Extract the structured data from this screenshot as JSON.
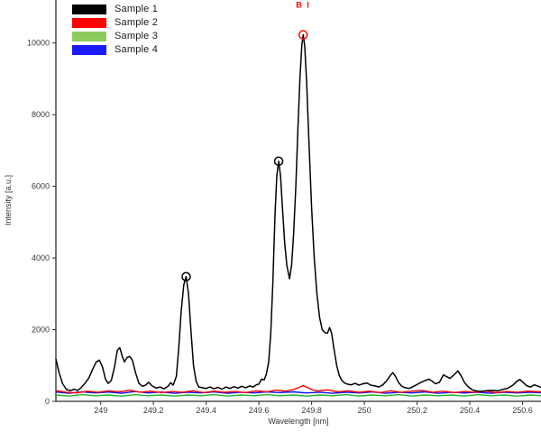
{
  "figure": {
    "background": "#ffffff",
    "axis_color": "#2b2b2b",
    "tick_label_color": "#3a3a3a"
  },
  "legend": {
    "position": "top-left",
    "items": [
      {
        "label": "Sample 1",
        "color": "#000000"
      },
      {
        "label": "Sample 2",
        "color": "#ff0000"
      },
      {
        "label": "Sample 3",
        "color": "#8ccb5e"
      },
      {
        "label": "Sample 4",
        "color": "#1a1aff"
      }
    ]
  },
  "chart_data": {
    "type": "line",
    "title": "",
    "xlabel": "Wavelength [nm]",
    "ylabel": "Intensity [a.u.]",
    "xlim": [
      248.83,
      250.67
    ],
    "ylim": [
      0,
      11200
    ],
    "grid": false,
    "legend_position": "top-left",
    "x_ticks": [
      249,
      249.2,
      249.4,
      249.6,
      249.8,
      250,
      250.2,
      250.4,
      250.6
    ],
    "x_tick_labels": [
      "249",
      "249.2",
      "249.4",
      "249.6",
      "249.8",
      "250",
      "250.2",
      "250.4",
      "250.6"
    ],
    "y_ticks": [
      0,
      2000,
      4000,
      6000,
      8000,
      10000
    ],
    "y_tick_labels": [
      "0",
      "2000",
      "4000",
      "6000",
      "8000",
      "10000"
    ],
    "markers": [
      {
        "x": 249.324,
        "y": 3480,
        "color": "#000000",
        "note": "peak marker"
      },
      {
        "x": 249.675,
        "y": 6700,
        "color": "#000000",
        "note": "peak marker"
      },
      {
        "x": 249.768,
        "y": 10230,
        "color": "#ff0000",
        "note": "B I peak marker"
      }
    ],
    "annotations": [
      {
        "text": "B I",
        "x": 249.768,
        "y": 10980,
        "color": "#ff0000"
      }
    ],
    "series": [
      {
        "name": "Sample 1",
        "color": "#000000",
        "line_width": 1.5,
        "points": [
          [
            248.83,
            1180
          ],
          [
            248.842,
            800
          ],
          [
            248.855,
            500
          ],
          [
            248.87,
            330
          ],
          [
            248.885,
            300
          ],
          [
            248.9,
            340
          ],
          [
            248.912,
            300
          ],
          [
            248.925,
            380
          ],
          [
            248.94,
            500
          ],
          [
            248.955,
            650
          ],
          [
            248.97,
            900
          ],
          [
            248.983,
            1100
          ],
          [
            248.995,
            1150
          ],
          [
            249.007,
            950
          ],
          [
            249.018,
            620
          ],
          [
            249.028,
            500
          ],
          [
            249.04,
            580
          ],
          [
            249.052,
            950
          ],
          [
            249.063,
            1420
          ],
          [
            249.072,
            1500
          ],
          [
            249.082,
            1250
          ],
          [
            249.09,
            1100
          ],
          [
            249.1,
            1220
          ],
          [
            249.11,
            1250
          ],
          [
            249.12,
            1150
          ],
          [
            249.132,
            800
          ],
          [
            249.145,
            500
          ],
          [
            249.158,
            420
          ],
          [
            249.17,
            450
          ],
          [
            249.182,
            530
          ],
          [
            249.195,
            430
          ],
          [
            249.21,
            370
          ],
          [
            249.225,
            400
          ],
          [
            249.24,
            350
          ],
          [
            249.255,
            420
          ],
          [
            249.265,
            520
          ],
          [
            249.275,
            450
          ],
          [
            249.287,
            700
          ],
          [
            249.296,
            1500
          ],
          [
            249.305,
            2500
          ],
          [
            249.315,
            3250
          ],
          [
            249.324,
            3480
          ],
          [
            249.333,
            3000
          ],
          [
            249.342,
            2000
          ],
          [
            249.352,
            1000
          ],
          [
            249.362,
            550
          ],
          [
            249.372,
            400
          ],
          [
            249.385,
            380
          ],
          [
            249.4,
            360
          ],
          [
            249.415,
            400
          ],
          [
            249.43,
            350
          ],
          [
            249.445,
            390
          ],
          [
            249.46,
            340
          ],
          [
            249.475,
            400
          ],
          [
            249.49,
            360
          ],
          [
            249.505,
            410
          ],
          [
            249.52,
            370
          ],
          [
            249.535,
            420
          ],
          [
            249.55,
            380
          ],
          [
            249.565,
            430
          ],
          [
            249.578,
            400
          ],
          [
            249.59,
            460
          ],
          [
            249.6,
            480
          ],
          [
            249.61,
            620
          ],
          [
            249.62,
            600
          ],
          [
            249.628,
            750
          ],
          [
            249.637,
            1100
          ],
          [
            249.645,
            1900
          ],
          [
            249.653,
            3300
          ],
          [
            249.661,
            5200
          ],
          [
            249.668,
            6300
          ],
          [
            249.675,
            6700
          ],
          [
            249.682,
            6300
          ],
          [
            249.69,
            5300
          ],
          [
            249.698,
            4400
          ],
          [
            249.706,
            3800
          ],
          [
            249.716,
            3420
          ],
          [
            249.724,
            3800
          ],
          [
            249.732,
            4700
          ],
          [
            249.74,
            6000
          ],
          [
            249.748,
            7600
          ],
          [
            249.756,
            9100
          ],
          [
            249.763,
            9950
          ],
          [
            249.768,
            10230
          ],
          [
            249.774,
            9900
          ],
          [
            249.781,
            8900
          ],
          [
            249.79,
            7200
          ],
          [
            249.8,
            5400
          ],
          [
            249.81,
            4000
          ],
          [
            249.82,
            3000
          ],
          [
            249.83,
            2350
          ],
          [
            249.84,
            2000
          ],
          [
            249.85,
            1920
          ],
          [
            249.86,
            1900
          ],
          [
            249.868,
            2060
          ],
          [
            249.876,
            1900
          ],
          [
            249.885,
            1450
          ],
          [
            249.895,
            1000
          ],
          [
            249.905,
            720
          ],
          [
            249.915,
            580
          ],
          [
            249.925,
            510
          ],
          [
            249.935,
            480
          ],
          [
            249.95,
            460
          ],
          [
            249.965,
            500
          ],
          [
            249.98,
            450
          ],
          [
            249.995,
            490
          ],
          [
            250.01,
            510
          ],
          [
            250.025,
            450
          ],
          [
            250.04,
            430
          ],
          [
            250.055,
            400
          ],
          [
            250.07,
            460
          ],
          [
            250.085,
            580
          ],
          [
            250.098,
            720
          ],
          [
            250.108,
            800
          ],
          [
            250.118,
            700
          ],
          [
            250.13,
            520
          ],
          [
            250.142,
            420
          ],
          [
            250.155,
            380
          ],
          [
            250.17,
            360
          ],
          [
            250.185,
            410
          ],
          [
            250.2,
            470
          ],
          [
            250.215,
            530
          ],
          [
            250.23,
            580
          ],
          [
            250.245,
            620
          ],
          [
            250.258,
            560
          ],
          [
            250.27,
            490
          ],
          [
            250.285,
            530
          ],
          [
            250.3,
            740
          ],
          [
            250.312,
            690
          ],
          [
            250.325,
            640
          ],
          [
            250.34,
            740
          ],
          [
            250.355,
            850
          ],
          [
            250.368,
            700
          ],
          [
            250.38,
            520
          ],
          [
            250.395,
            400
          ],
          [
            250.41,
            320
          ],
          [
            250.425,
            290
          ],
          [
            250.445,
            280
          ],
          [
            250.465,
            300
          ],
          [
            250.485,
            310
          ],
          [
            250.505,
            295
          ],
          [
            250.525,
            330
          ],
          [
            250.545,
            370
          ],
          [
            250.565,
            460
          ],
          [
            250.578,
            560
          ],
          [
            250.59,
            610
          ],
          [
            250.603,
            520
          ],
          [
            250.617,
            430
          ],
          [
            250.63,
            400
          ],
          [
            250.645,
            460
          ],
          [
            250.66,
            420
          ],
          [
            250.67,
            390
          ]
        ]
      },
      {
        "name": "Sample 2",
        "color": "#ff0000",
        "line_width": 1.4,
        "points": [
          [
            248.83,
            300
          ],
          [
            248.87,
            255
          ],
          [
            248.91,
            235
          ],
          [
            248.95,
            285
          ],
          [
            248.99,
            255
          ],
          [
            249.03,
            295
          ],
          [
            249.07,
            265
          ],
          [
            249.11,
            310
          ],
          [
            249.15,
            255
          ],
          [
            249.19,
            285
          ],
          [
            249.23,
            245
          ],
          [
            249.27,
            275
          ],
          [
            249.31,
            255
          ],
          [
            249.35,
            295
          ],
          [
            249.39,
            245
          ],
          [
            249.43,
            285
          ],
          [
            249.47,
            255
          ],
          [
            249.51,
            275
          ],
          [
            249.55,
            245
          ],
          [
            249.59,
            295
          ],
          [
            249.63,
            265
          ],
          [
            249.665,
            315
          ],
          [
            249.7,
            285
          ],
          [
            249.73,
            330
          ],
          [
            249.75,
            380
          ],
          [
            249.768,
            440
          ],
          [
            249.785,
            385
          ],
          [
            249.8,
            330
          ],
          [
            249.82,
            290
          ],
          [
            249.86,
            320
          ],
          [
            249.9,
            265
          ],
          [
            249.94,
            295
          ],
          [
            249.98,
            255
          ],
          [
            250.02,
            285
          ],
          [
            250.06,
            245
          ],
          [
            250.1,
            295
          ],
          [
            250.14,
            255
          ],
          [
            250.18,
            285
          ],
          [
            250.22,
            305
          ],
          [
            250.26,
            255
          ],
          [
            250.3,
            285
          ],
          [
            250.34,
            245
          ],
          [
            250.38,
            275
          ],
          [
            250.42,
            255
          ],
          [
            250.46,
            285
          ],
          [
            250.5,
            245
          ],
          [
            250.54,
            275
          ],
          [
            250.58,
            255
          ],
          [
            250.62,
            285
          ],
          [
            250.67,
            265
          ]
        ]
      },
      {
        "name": "Sample 3",
        "color": "#1cb72c",
        "line_width": 1.4,
        "points": [
          [
            248.83,
            175
          ],
          [
            248.88,
            145
          ],
          [
            248.93,
            185
          ],
          [
            248.98,
            155
          ],
          [
            249.03,
            175
          ],
          [
            249.08,
            145
          ],
          [
            249.13,
            185
          ],
          [
            249.18,
            155
          ],
          [
            249.23,
            175
          ],
          [
            249.28,
            145
          ],
          [
            249.33,
            175
          ],
          [
            249.38,
            155
          ],
          [
            249.43,
            185
          ],
          [
            249.48,
            145
          ],
          [
            249.53,
            175
          ],
          [
            249.58,
            155
          ],
          [
            249.63,
            185
          ],
          [
            249.68,
            155
          ],
          [
            249.73,
            175
          ],
          [
            249.78,
            145
          ],
          [
            249.83,
            175
          ],
          [
            249.88,
            155
          ],
          [
            249.93,
            185
          ],
          [
            249.98,
            145
          ],
          [
            250.03,
            175
          ],
          [
            250.08,
            155
          ],
          [
            250.13,
            185
          ],
          [
            250.18,
            145
          ],
          [
            250.23,
            175
          ],
          [
            250.28,
            155
          ],
          [
            250.33,
            175
          ],
          [
            250.38,
            145
          ],
          [
            250.43,
            185
          ],
          [
            250.48,
            155
          ],
          [
            250.53,
            175
          ],
          [
            250.58,
            145
          ],
          [
            250.63,
            175
          ],
          [
            250.67,
            155
          ]
        ]
      },
      {
        "name": "Sample 4",
        "color": "#0a0af0",
        "line_width": 1.4,
        "points": [
          [
            248.83,
            260
          ],
          [
            248.88,
            225
          ],
          [
            248.93,
            265
          ],
          [
            248.98,
            235
          ],
          [
            249.03,
            260
          ],
          [
            249.08,
            225
          ],
          [
            249.13,
            275
          ],
          [
            249.18,
            235
          ],
          [
            249.23,
            260
          ],
          [
            249.28,
            225
          ],
          [
            249.33,
            255
          ],
          [
            249.38,
            235
          ],
          [
            249.43,
            265
          ],
          [
            249.48,
            225
          ],
          [
            249.53,
            255
          ],
          [
            249.58,
            235
          ],
          [
            249.63,
            265
          ],
          [
            249.68,
            245
          ],
          [
            249.73,
            265
          ],
          [
            249.78,
            235
          ],
          [
            249.83,
            255
          ],
          [
            249.88,
            225
          ],
          [
            249.93,
            255
          ],
          [
            249.98,
            235
          ],
          [
            250.03,
            265
          ],
          [
            250.08,
            225
          ],
          [
            250.13,
            255
          ],
          [
            250.18,
            235
          ],
          [
            250.23,
            265
          ],
          [
            250.28,
            225
          ],
          [
            250.33,
            255
          ],
          [
            250.38,
            235
          ],
          [
            250.43,
            255
          ],
          [
            250.48,
            225
          ],
          [
            250.53,
            255
          ],
          [
            250.58,
            235
          ],
          [
            250.63,
            255
          ],
          [
            250.67,
            240
          ]
        ]
      }
    ]
  }
}
